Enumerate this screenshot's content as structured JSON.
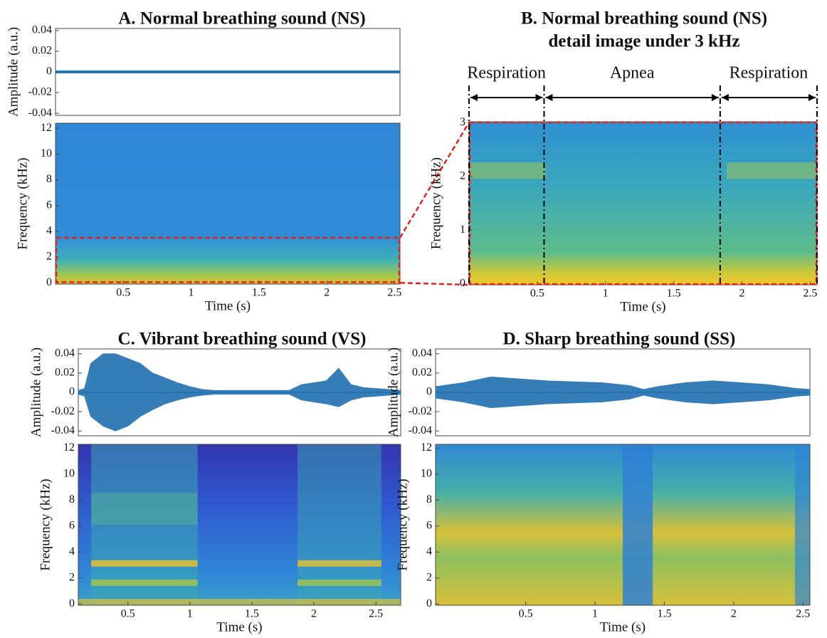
{
  "chart_data": [
    {
      "type": "waveform",
      "title": "A. Normal breathing sound (NS)",
      "y_label": "Amplitude (a.u.)",
      "xlim": [
        0,
        2.54
      ],
      "ylim": [
        -0.042,
        0.042
      ],
      "yticks": [
        -0.04,
        -0.02,
        0,
        0.02,
        0.04
      ],
      "color": "#1f6fb0",
      "x": [
        0,
        2.54
      ],
      "series": [
        {
          "values": [
            0.0012,
            0.0012
          ]
        },
        {
          "values": [
            -0.0012,
            -0.0012
          ]
        }
      ]
    },
    {
      "type": "spectrogram",
      "x_label": "Time (s)",
      "y_label": "Frequency (kHz)",
      "xlim": [
        0,
        2.54
      ],
      "ylim": [
        -0.1,
        12.4
      ],
      "xticks": [
        0.5,
        1,
        1.5,
        2,
        2.5
      ],
      "yticks": [
        0,
        2,
        4,
        6,
        8,
        10,
        12
      ],
      "zoom_ylim": [
        0,
        3.5
      ]
    },
    {
      "type": "spectrogram",
      "title": "B. Normal breathing sound (NS)",
      "subtitle": "detail image under 3 kHz",
      "x_label": "Time (s)",
      "y_label": "Frequency (kHz)",
      "xlim": [
        0,
        2.55
      ],
      "ylim": [
        -0.02,
        3.02
      ],
      "xticks": [
        0.5,
        1,
        1.5,
        2,
        2.5
      ],
      "yticks": [
        0,
        1,
        2,
        3
      ],
      "segments": [
        {
          "label": "Respiration",
          "start": 0,
          "end": 0.55
        },
        {
          "label": "Apnea",
          "start": 0.55,
          "end": 1.84
        },
        {
          "label": "Respiration",
          "start": 1.84,
          "end": 2.55
        }
      ]
    },
    {
      "type": "waveform",
      "title": "C. Vibrant breathing sound (VS)",
      "y_label": "Amplitude (a.u.)",
      "xlim": [
        0.1,
        2.7
      ],
      "ylim": [
        -0.045,
        0.045
      ],
      "yticks": [
        -0.04,
        -0.02,
        0,
        0.02,
        0.04
      ],
      "color": "#1f6fb0",
      "x": [
        0.1,
        0.15,
        0.2,
        0.3,
        0.4,
        0.5,
        0.6,
        0.7,
        0.8,
        0.9,
        1.0,
        1.1,
        1.2,
        1.5,
        1.8,
        1.9,
        2.0,
        2.1,
        2.2,
        2.3,
        2.4,
        2.5,
        2.7
      ],
      "series": [
        {
          "values": [
            0.002,
            0.004,
            0.03,
            0.04,
            0.04,
            0.035,
            0.03,
            0.02,
            0.015,
            0.01,
            0.006,
            0.003,
            0.002,
            0.002,
            0.002,
            0.008,
            0.01,
            0.012,
            0.025,
            0.008,
            0.005,
            0.004,
            0.002
          ]
        },
        {
          "values": [
            -0.002,
            -0.004,
            -0.025,
            -0.035,
            -0.04,
            -0.035,
            -0.025,
            -0.018,
            -0.012,
            -0.008,
            -0.005,
            -0.003,
            -0.002,
            -0.002,
            -0.002,
            -0.008,
            -0.01,
            -0.012,
            -0.015,
            -0.008,
            -0.005,
            -0.004,
            -0.002
          ]
        }
      ]
    },
    {
      "type": "spectrogram",
      "x_label": "Time (s)",
      "y_label": "Frequency (kHz)",
      "xlim": [
        0.1,
        2.7
      ],
      "ylim": [
        -0.1,
        12.3
      ],
      "xticks": [
        0.5,
        1,
        1.5,
        2,
        2.5
      ],
      "yticks": [
        0,
        2,
        4,
        6,
        8,
        10,
        12
      ]
    },
    {
      "type": "waveform",
      "title": "D. Sharp breathing sound (SS)",
      "y_label": "Amplitude (a.u.)",
      "xlim": [
        -0.15,
        2.55
      ],
      "ylim": [
        -0.045,
        0.045
      ],
      "yticks": [
        -0.04,
        -0.02,
        0,
        0.02,
        0.04
      ],
      "color": "#1f6fb0",
      "x": [
        -0.15,
        0.05,
        0.25,
        0.45,
        0.65,
        0.85,
        1.05,
        1.25,
        1.35,
        1.45,
        1.65,
        1.85,
        2.05,
        2.25,
        2.45,
        2.55
      ],
      "series": [
        {
          "values": [
            0.006,
            0.01,
            0.016,
            0.014,
            0.012,
            0.011,
            0.01,
            0.007,
            0.003,
            0.006,
            0.01,
            0.012,
            0.01,
            0.008,
            0.004,
            0.003
          ]
        },
        {
          "values": [
            -0.006,
            -0.01,
            -0.016,
            -0.014,
            -0.012,
            -0.011,
            -0.01,
            -0.007,
            -0.003,
            -0.006,
            -0.01,
            -0.012,
            -0.01,
            -0.008,
            -0.004,
            -0.003
          ]
        }
      ]
    },
    {
      "type": "spectrogram",
      "x_label": "Time (s)",
      "y_label": "Frequency (kHz)",
      "xlim": [
        -0.15,
        2.55
      ],
      "ylim": [
        -0.1,
        12.3
      ],
      "xticks": [
        0.5,
        1,
        1.5,
        2,
        2.5
      ],
      "yticks": [
        0,
        2,
        4,
        6,
        8,
        10,
        12
      ]
    }
  ]
}
